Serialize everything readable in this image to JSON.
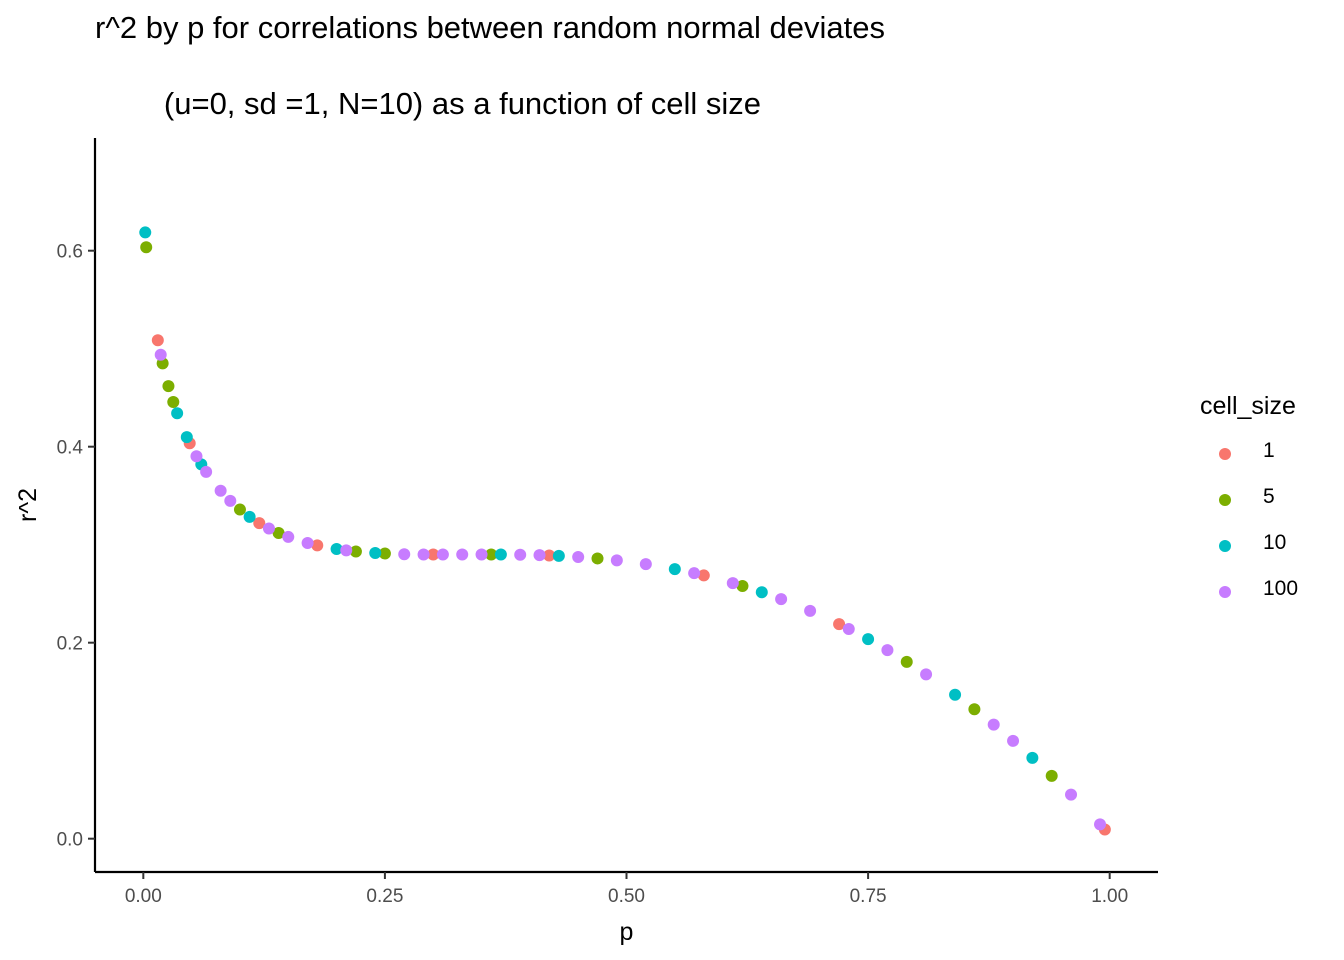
{
  "chart_data": {
    "type": "scatter",
    "title": "r^2 by p for correlations between random normal deviates",
    "subtitle": "        (u=0, sd =1, N=10) as a function of cell size",
    "xlabel": "p",
    "ylabel": "r^2",
    "xlim": [
      -0.05,
      1.05
    ],
    "ylim": [
      -0.034,
      0.715
    ],
    "xticks": [
      "0.00",
      "0.25",
      "0.50",
      "0.75",
      "1.00"
    ],
    "xtick_values": [
      0,
      0.25,
      0.5,
      0.75,
      1.0
    ],
    "yticks": [
      "0.0",
      "0.2",
      "0.4",
      "0.6"
    ],
    "ytick_values": [
      0,
      0.2,
      0.4,
      0.6
    ],
    "grid": false,
    "legend_title": "cell_size",
    "legend_position": "right",
    "series": [
      {
        "name": "1",
        "color": "#F8766D",
        "x": [
          0.015,
          0.048,
          0.12,
          0.18,
          0.3,
          0.42,
          0.58,
          0.72,
          0.995
        ]
      },
      {
        "name": "5",
        "color": "#7CAE00",
        "x": [
          0.003,
          0.02,
          0.026,
          0.031,
          0.1,
          0.14,
          0.22,
          0.25,
          0.36,
          0.47,
          0.62,
          0.79,
          0.86,
          0.94
        ]
      },
      {
        "name": "10",
        "color": "#00BFC4",
        "x": [
          0.002,
          0.035,
          0.045,
          0.06,
          0.11,
          0.2,
          0.24,
          0.37,
          0.43,
          0.55,
          0.64,
          0.75,
          0.84,
          0.92
        ]
      },
      {
        "name": "100",
        "color": "#C77CFF",
        "x": [
          0.018,
          0.055,
          0.065,
          0.08,
          0.09,
          0.13,
          0.15,
          0.17,
          0.21,
          0.27,
          0.29,
          0.31,
          0.33,
          0.35,
          0.39,
          0.41,
          0.45,
          0.49,
          0.52,
          0.57,
          0.61,
          0.66,
          0.69,
          0.73,
          0.77,
          0.81,
          0.88,
          0.9,
          0.96,
          0.99
        ]
      }
    ]
  }
}
